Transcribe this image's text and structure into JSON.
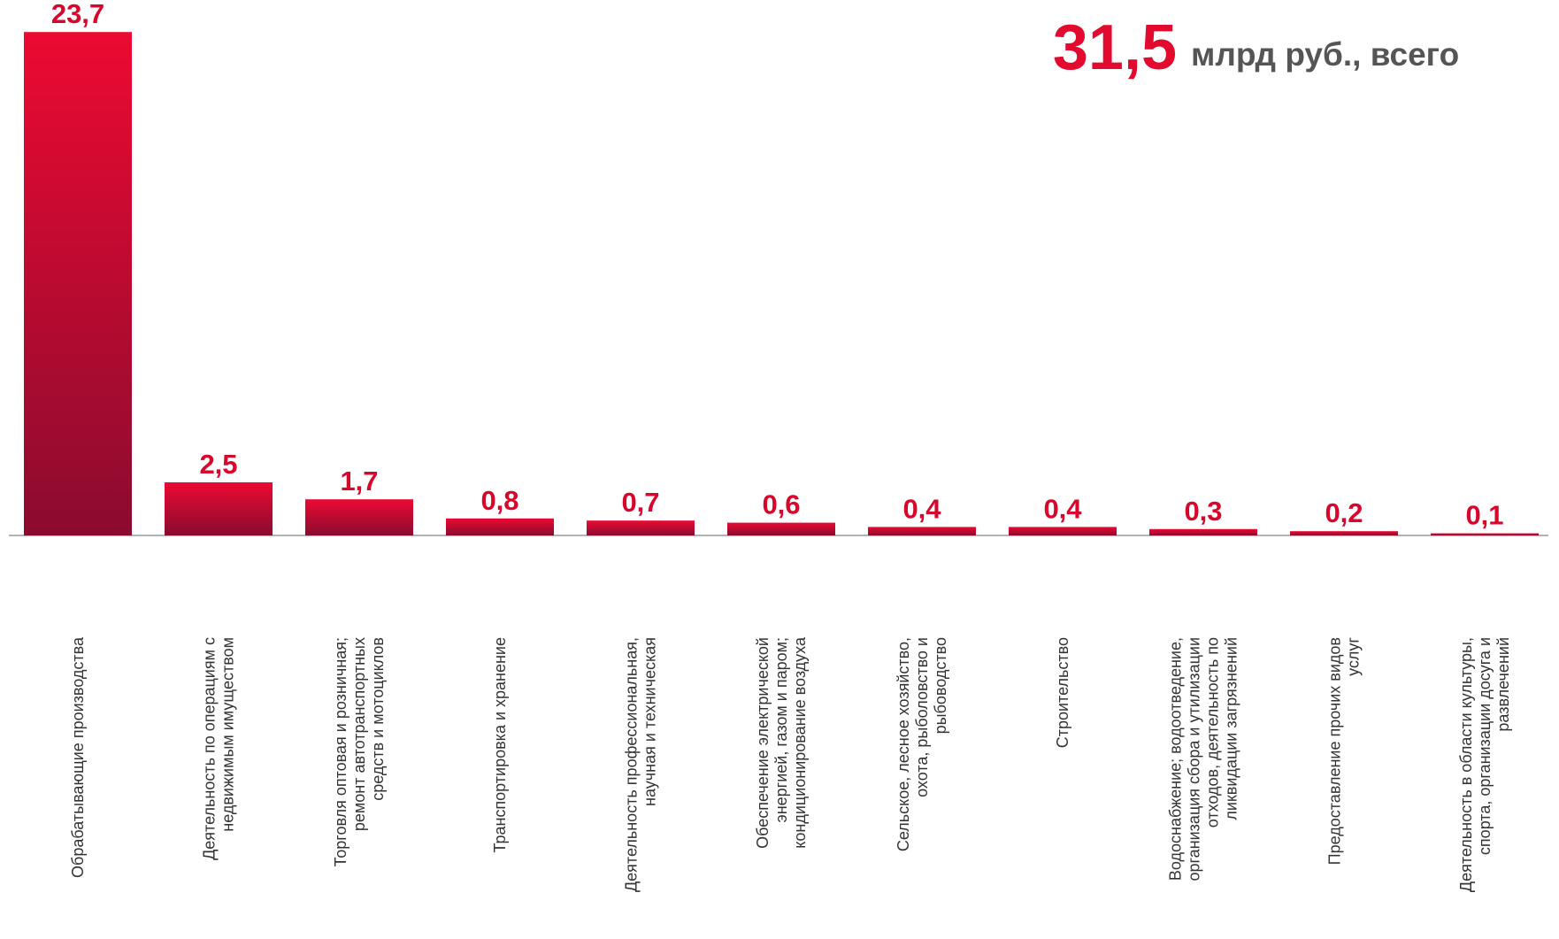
{
  "chart_data": {
    "type": "bar",
    "total": {
      "value": 31.5,
      "label": "31,5"
    },
    "total_unit": "млрд руб., всего",
    "categories": [
      [
        "Обрабатывающие производства"
      ],
      [
        "Деятельность по операциям с",
        "недвижимым имуществом"
      ],
      [
        "Торговля оптовая и розничная;",
        "ремонт автотранспортных",
        "средств и мотоциклов"
      ],
      [
        "Транспортировка и хранение"
      ],
      [
        "Деятельность профессиональная,",
        "научная и техническая"
      ],
      [
        "Обеспечение электрической",
        "энергией, газом и паром;",
        "кондиционирование воздуха"
      ],
      [
        "Сельское, лесное хозяйство,",
        "охота, рыболовство и",
        "рыбоводство"
      ],
      [
        "Строительство"
      ],
      [
        "Водоснабжение; водоотведение,",
        "организация сбора и утилизации",
        "отходов, деятельность по",
        "ликвидации загрязнений"
      ],
      [
        "Предоставление прочих видов",
        "услуг"
      ],
      [
        "Деятельность в области культуры,",
        "спорта, организации досуга и",
        "развлечений"
      ]
    ],
    "values": [
      23.7,
      2.5,
      1.7,
      0.8,
      0.7,
      0.6,
      0.4,
      0.4,
      0.3,
      0.2,
      0.1
    ],
    "value_labels": [
      "23,7",
      "2,5",
      "1,7",
      "0,8",
      "0,7",
      "0,6",
      "0,4",
      "0,4",
      "0,3",
      "0,2",
      "0,1"
    ],
    "colors": [
      "#ec0a32",
      "#8a0b2f"
    ],
    "ylim": [
      0,
      24
    ]
  }
}
